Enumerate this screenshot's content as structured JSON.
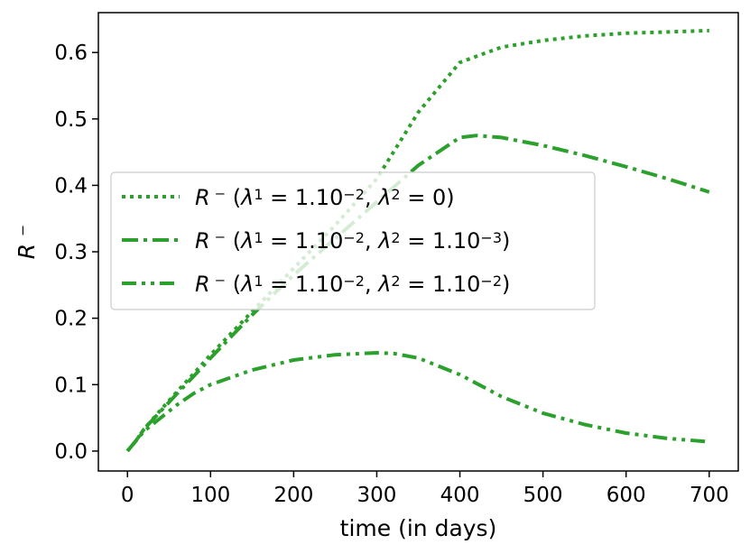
{
  "chart_data": {
    "type": "line",
    "xlabel": "time (in days)",
    "ylabel": "R ⁻",
    "xlim": [
      -35,
      735
    ],
    "ylim": [
      -0.03,
      0.66
    ],
    "xticks": [
      0,
      100,
      200,
      300,
      400,
      500,
      600,
      700
    ],
    "yticks": [
      0.0,
      0.1,
      0.2,
      0.3,
      0.4,
      0.5,
      0.6
    ],
    "ytick_labels": [
      "0.0",
      "0.1",
      "0.2",
      "0.3",
      "0.4",
      "0.5",
      "0.6"
    ],
    "grid": false,
    "legend_position": "center-left",
    "color": "#2ca02c",
    "series": [
      {
        "legend": {
          "lambda1": "1.10",
          "lambda1_exp": "−2",
          "lambda2": "0",
          "lambda2_exp": ""
        },
        "dash": "dotted",
        "x": [
          0,
          10,
          20,
          40,
          60,
          80,
          100,
          150,
          200,
          250,
          300,
          350,
          400,
          450,
          500,
          550,
          600,
          650,
          700
        ],
        "y": [
          0.0,
          0.015,
          0.033,
          0.062,
          0.09,
          0.117,
          0.145,
          0.21,
          0.275,
          0.34,
          0.41,
          0.51,
          0.585,
          0.608,
          0.618,
          0.625,
          0.629,
          0.631,
          0.633
        ]
      },
      {
        "legend": {
          "lambda1": "1.10",
          "lambda1_exp": "−2",
          "lambda2": "1.10",
          "lambda2_exp": "−3"
        },
        "dash": "dashdot",
        "x": [
          0,
          10,
          20,
          40,
          60,
          80,
          100,
          150,
          200,
          250,
          300,
          350,
          400,
          420,
          450,
          500,
          550,
          600,
          650,
          700
        ],
        "y": [
          0.0,
          0.015,
          0.033,
          0.06,
          0.087,
          0.113,
          0.14,
          0.205,
          0.265,
          0.32,
          0.375,
          0.43,
          0.472,
          0.475,
          0.472,
          0.46,
          0.445,
          0.428,
          0.41,
          0.39
        ]
      },
      {
        "legend": {
          "lambda1": "1.10",
          "lambda1_exp": "−2",
          "lambda2": "1.10",
          "lambda2_exp": "−2"
        },
        "dash": "dashdotdot",
        "x": [
          0,
          10,
          20,
          40,
          60,
          80,
          100,
          150,
          200,
          250,
          300,
          320,
          350,
          400,
          450,
          500,
          550,
          600,
          650,
          700
        ],
        "y": [
          0.0,
          0.015,
          0.03,
          0.05,
          0.07,
          0.087,
          0.1,
          0.122,
          0.137,
          0.145,
          0.148,
          0.147,
          0.14,
          0.115,
          0.082,
          0.057,
          0.04,
          0.027,
          0.019,
          0.014
        ]
      }
    ]
  }
}
